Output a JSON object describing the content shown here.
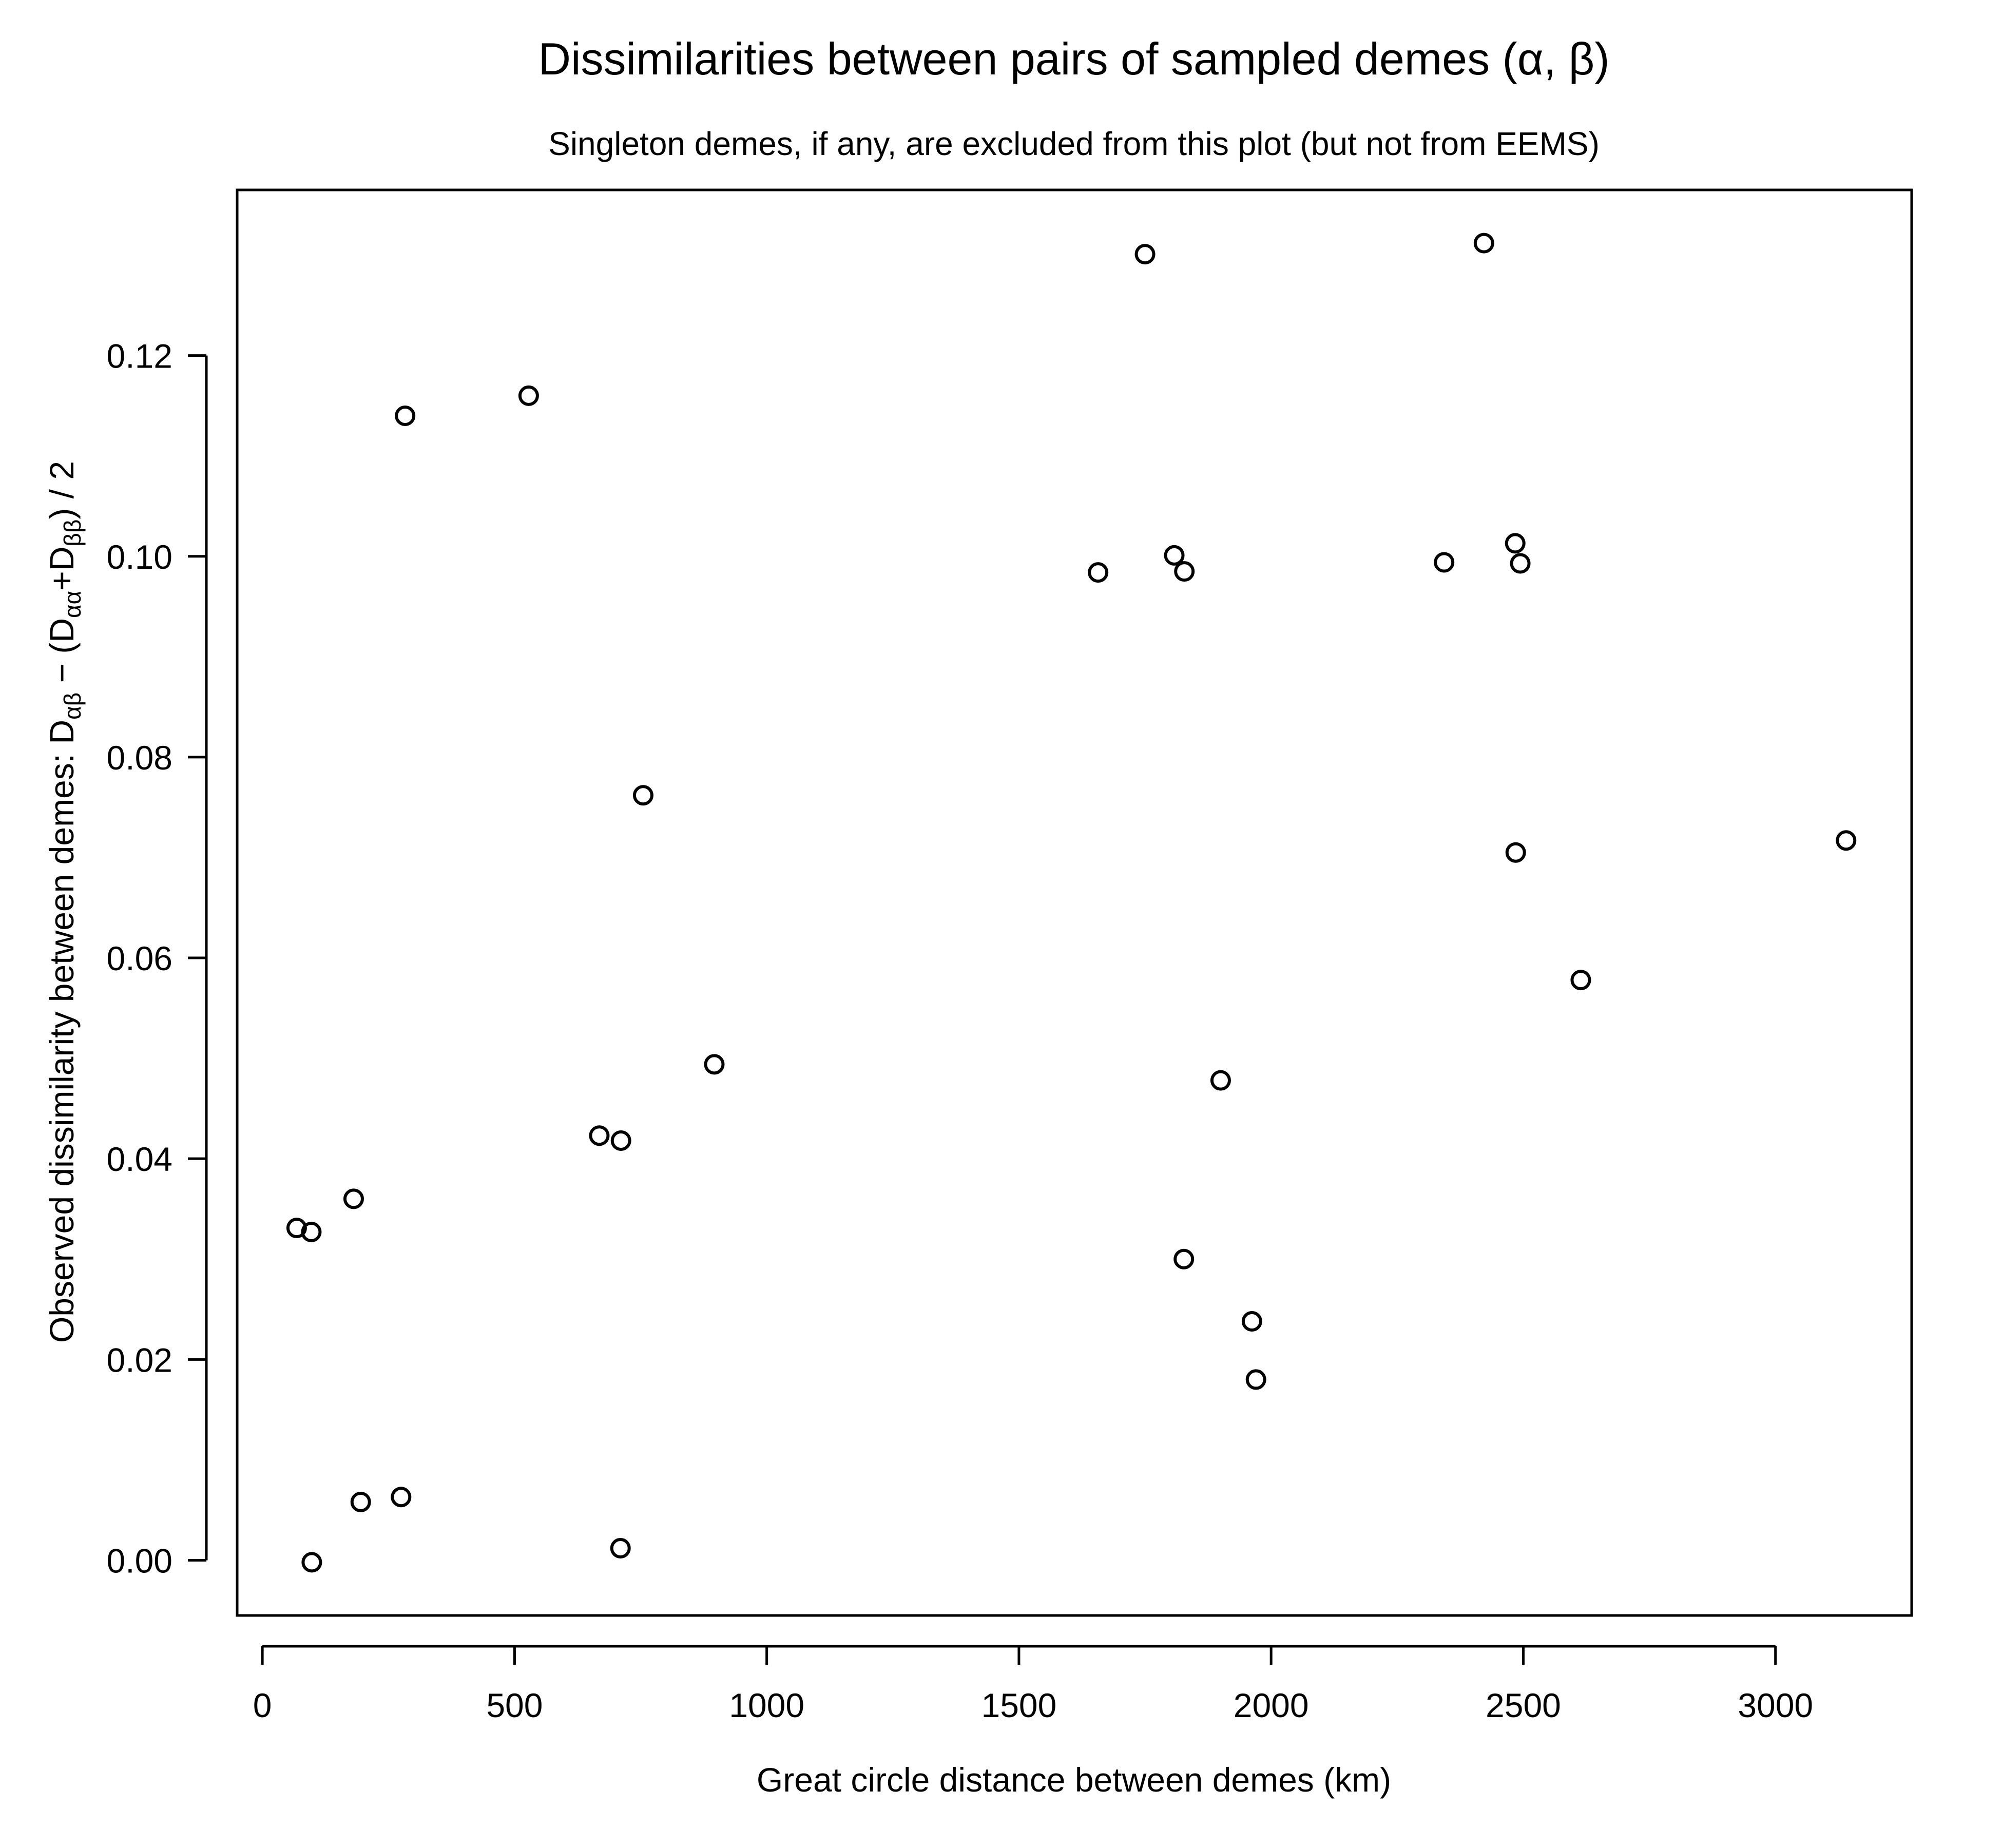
{
  "chart_data": {
    "type": "scatter",
    "title": "Dissimilarities between pairs of sampled demes (α, β)",
    "subtitle": "Singleton demes, if any, are excluded from this plot (but not from EEMS)",
    "xlabel": "Great circle distance between demes (km)",
    "ylabel": {
      "prefix": "Observed dissimilarity between demes:   D",
      "s1": "αβ",
      "mid1": " − (D",
      "s2": "αα",
      "mid2": "+D",
      "s3": "ββ",
      "suffix": ") / 2"
    },
    "xlim": [
      -50,
      3270
    ],
    "ylim": [
      -0.0055,
      0.1365
    ],
    "xticks": [
      "0",
      "500",
      "1000",
      "1500",
      "2000",
      "2500",
      "3000"
    ],
    "yticks": [
      "0.00",
      "0.02",
      "0.04",
      "0.06",
      "0.08",
      "0.10",
      "0.12"
    ],
    "points": [
      {
        "x": 68,
        "y": 0.0331
      },
      {
        "x": 97,
        "y": 0.0327
      },
      {
        "x": 98,
        "y": -0.0002
      },
      {
        "x": 181,
        "y": 0.036
      },
      {
        "x": 195,
        "y": 0.0058
      },
      {
        "x": 275,
        "y": 0.0063
      },
      {
        "x": 283,
        "y": 0.114
      },
      {
        "x": 528,
        "y": 0.116
      },
      {
        "x": 668,
        "y": 0.0423
      },
      {
        "x": 711,
        "y": 0.0418
      },
      {
        "x": 710,
        "y": 0.0012
      },
      {
        "x": 755,
        "y": 0.0762
      },
      {
        "x": 896,
        "y": 0.0494
      },
      {
        "x": 1657,
        "y": 0.0984
      },
      {
        "x": 1750,
        "y": 0.1301
      },
      {
        "x": 1808,
        "y": 0.1001
      },
      {
        "x": 1828,
        "y": 0.0985
      },
      {
        "x": 1827,
        "y": 0.03
      },
      {
        "x": 1900,
        "y": 0.0478
      },
      {
        "x": 1962,
        "y": 0.0238
      },
      {
        "x": 1970,
        "y": 0.018
      },
      {
        "x": 2343,
        "y": 0.0994
      },
      {
        "x": 2422,
        "y": 0.1312
      },
      {
        "x": 2484,
        "y": 0.1013
      },
      {
        "x": 2494,
        "y": 0.0993
      },
      {
        "x": 2485,
        "y": 0.0705
      },
      {
        "x": 2614,
        "y": 0.0578
      },
      {
        "x": 3140,
        "y": 0.0717
      }
    ]
  }
}
